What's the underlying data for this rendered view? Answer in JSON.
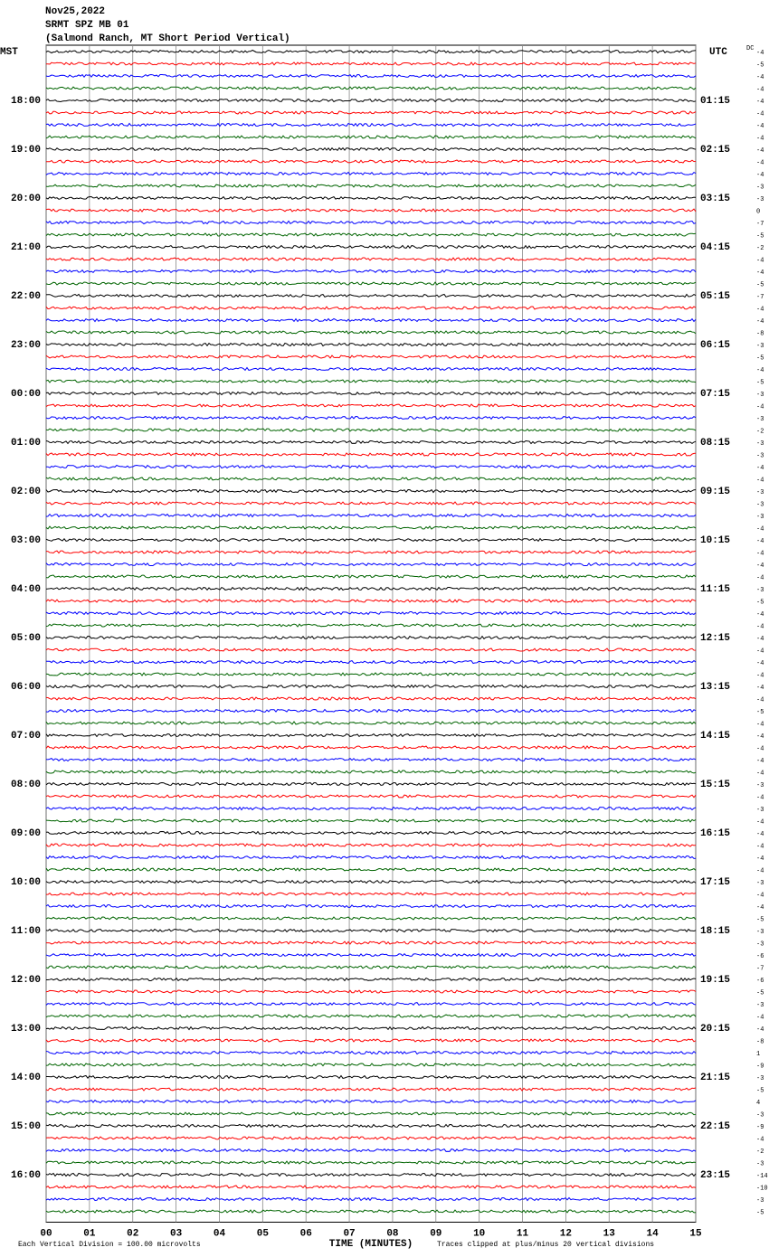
{
  "header": {
    "date": "Nov25,2022",
    "station": "SRMT SPZ MB 01",
    "location": "(Salmond Ranch, MT Short Period Vertical)"
  },
  "left_title": "MST",
  "right_title": "UTC",
  "dc_title": "DC",
  "left_labels": [
    "18:00",
    "19:00",
    "20:00",
    "21:00",
    "22:00",
    "23:00",
    "00:00",
    "01:00",
    "02:00",
    "03:00",
    "04:00",
    "05:00",
    "06:00",
    "07:00",
    "08:00",
    "09:00",
    "10:00",
    "11:00",
    "12:00",
    "13:00",
    "14:00",
    "15:00",
    "16:00"
  ],
  "right_labels": [
    "01:15",
    "02:15",
    "03:15",
    "04:15",
    "05:15",
    "06:15",
    "07:15",
    "08:15",
    "09:15",
    "10:15",
    "11:15",
    "12:15",
    "13:15",
    "14:15",
    "15:15",
    "16:15",
    "17:15",
    "18:15",
    "19:15",
    "20:15",
    "21:15",
    "22:15",
    "23:15"
  ],
  "trace_colors": [
    "#000000",
    "#ff0000",
    "#0000ff",
    "#006400"
  ],
  "dc_offsets": [
    -4,
    -5,
    -4,
    -4,
    -4,
    -4,
    -4,
    -4,
    -4,
    -4,
    -4,
    -3,
    -3,
    0,
    -7,
    -5,
    -2,
    -4,
    -4,
    -5,
    -7,
    -4,
    -4,
    -8,
    -3,
    -5,
    -4,
    -5,
    -3,
    -4,
    -3,
    -2,
    -3,
    -3,
    -4,
    -4,
    -3,
    -3,
    -3,
    -4,
    -4,
    -4,
    -4,
    -4,
    -3,
    -5,
    -4,
    -4,
    -4,
    -4,
    -4,
    -4,
    -4,
    -4,
    -5,
    -4,
    -4,
    -4,
    -4,
    -4,
    -3,
    -4,
    -3,
    -4,
    -4,
    -4,
    -4,
    -4,
    -3,
    -4,
    -4,
    -5,
    -3,
    -3,
    -6,
    -7,
    -6,
    -5,
    -3,
    -4,
    -4,
    -8,
    1,
    -9,
    -3,
    -5,
    4,
    -3,
    -9,
    -4,
    -2,
    -3,
    -14,
    -10,
    -3,
    -5
  ],
  "x_ticks": [
    "00",
    "01",
    "02",
    "03",
    "04",
    "05",
    "06",
    "07",
    "08",
    "09",
    "10",
    "11",
    "12",
    "13",
    "14",
    "15"
  ],
  "x_label": "TIME (MINUTES)",
  "footer_left": "Each Vertical Division = 100.00 microvolts",
  "footer_right": "Traces clipped at plus/minus 20 vertical divisions"
}
